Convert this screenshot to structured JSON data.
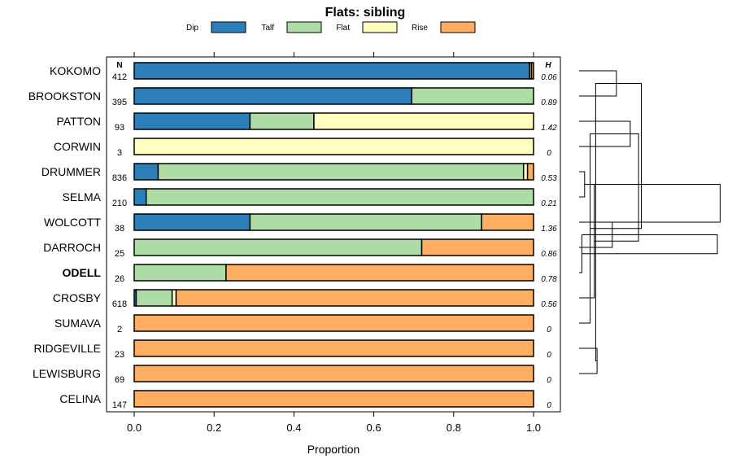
{
  "chart_data": {
    "type": "bar",
    "orientation": "horizontal",
    "stacked": true,
    "title": "Flats: sibling",
    "xlabel": "Proportion",
    "ylabel": "",
    "xlim": [
      0,
      1
    ],
    "xticks": [
      "0.0",
      "0.2",
      "0.4",
      "0.6",
      "0.8",
      "1.0"
    ],
    "legend": {
      "placement": "top",
      "entries": [
        {
          "name": "Dip",
          "color": "#2C7FB8"
        },
        {
          "name": "Talf",
          "color": "#ADDDA4"
        },
        {
          "name": "Flat",
          "color": "#FFFFBF"
        },
        {
          "name": "Rise",
          "color": "#FDAE61"
        }
      ]
    },
    "n_header": "N",
    "h_header": "H",
    "categories": [
      "KOKOMO",
      "BROOKSTON",
      "PATTON",
      "CORWIN",
      "DRUMMER",
      "SELMA",
      "WOLCOTT",
      "DARROCH",
      "ODELL",
      "CROSBY",
      "SUMAVA",
      "RIDGEVILLE",
      "LEWISBURG",
      "CELINA"
    ],
    "highlighted_category": "ODELL",
    "n": [
      "412",
      "395",
      "93",
      "3",
      "836",
      "210",
      "38",
      "25",
      "26",
      "618",
      "2",
      "23",
      "69",
      "147"
    ],
    "h": [
      "0.06",
      "0.89",
      "1.42",
      "0",
      "0.53",
      "0.21",
      "1.36",
      "0.86",
      "0.78",
      "0.56",
      "0",
      "0",
      "0",
      "0"
    ],
    "series": [
      {
        "name": "Dip",
        "color": "#2C7FB8",
        "values": [
          0.99,
          0.695,
          0.29,
          0,
          0.06,
          0.03,
          0.29,
          0,
          0,
          0.005,
          0,
          0,
          0,
          0
        ]
      },
      {
        "name": "Talf",
        "color": "#ADDDA4",
        "values": [
          0.005,
          0.305,
          0.16,
          0,
          0.915,
          0.97,
          0.58,
          0.72,
          0.23,
          0.09,
          0,
          0,
          0,
          0
        ]
      },
      {
        "name": "Flat",
        "color": "#FFFFBF",
        "values": [
          0,
          0,
          0.55,
          1.0,
          0.01,
          0,
          0,
          0,
          0,
          0.01,
          0,
          0,
          0,
          0
        ]
      },
      {
        "name": "Rise",
        "color": "#FDAE61",
        "values": [
          0.005,
          0,
          0,
          0,
          0.015,
          0,
          0.13,
          0.28,
          0.77,
          0.895,
          1.0,
          1.0,
          1.0,
          1.0
        ]
      }
    ],
    "dendrogram": {
      "leaf_order": [
        "KOKOMO",
        "BROOKSTON",
        "PATTON",
        "CORWIN",
        "DRUMMER",
        "SELMA",
        "WOLCOTT",
        "DARROCH",
        "ODELL",
        "CROSBY",
        "SUMAVA",
        "RIDGEVILLE",
        "LEWISBURG",
        "CELINA"
      ],
      "merges": [
        {
          "a": 0,
          "b": 1,
          "height": 0.27
        },
        {
          "a": 2,
          "b": 3,
          "height": 0.37
        },
        {
          "a": 4,
          "b": 5,
          "height": 0.04
        },
        {
          "a": 6,
          "b": 7,
          "height": 0.24
        },
        {
          "a": 11,
          "b": 12,
          "height": 0.13
        },
        {
          "a": 10,
          "b": 15,
          "height": 0.08
        },
        {
          "a": 9,
          "b": 16,
          "height": 0.11
        },
        {
          "a": 8,
          "b": 17,
          "height": 0.02
        },
        {
          "a": 14,
          "b": 18,
          "height": 0.12
        },
        {
          "a": 14,
          "b": 19,
          "height": 0.45
        },
        {
          "a": 15,
          "b": 20,
          "height": 0.43
        },
        {
          "a": 17,
          "b": 21,
          "height": 1.0
        },
        {
          "a": 16,
          "b": 22,
          "height": 1.02
        }
      ]
    }
  }
}
